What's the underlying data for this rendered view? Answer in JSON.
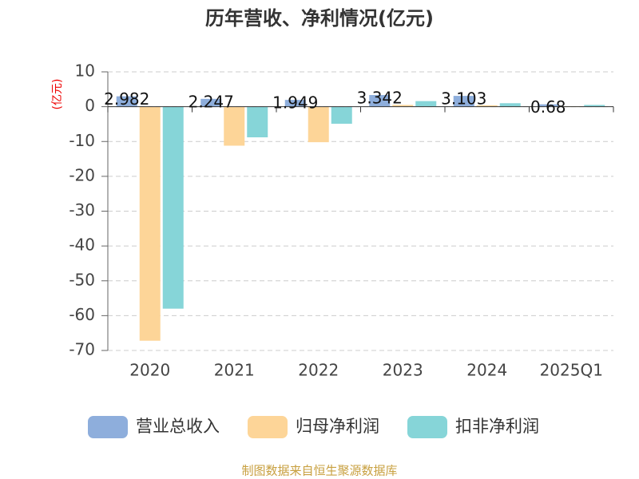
{
  "chart_data": {
    "type": "bar",
    "title": "历年营收、净利情况(亿元)",
    "y_label": "(亿元)",
    "categories": [
      "2020",
      "2021",
      "2022",
      "2023",
      "2024",
      "2025Q1"
    ],
    "series": [
      {
        "name": "营业总收入",
        "color": "#8eaedc",
        "values": [
          2.982,
          2.247,
          1.949,
          3.342,
          3.103,
          0.68
        ],
        "data_labels": true
      },
      {
        "name": "归母净利润",
        "color": "#fdd598",
        "values": [
          -67.2,
          -11.2,
          -10.2,
          0.5,
          0.4,
          0.1
        ]
      },
      {
        "name": "扣非净利润",
        "color": "#86d5d8",
        "values": [
          -58.0,
          -8.8,
          -4.9,
          1.6,
          1.0,
          0.5
        ]
      }
    ],
    "ylim": [
      -70,
      10
    ],
    "yticks": [
      -70,
      -60,
      -50,
      -40,
      -30,
      -20,
      -10,
      0,
      10
    ],
    "grid": true,
    "source": "制图数据来自恒生聚源数据库"
  }
}
